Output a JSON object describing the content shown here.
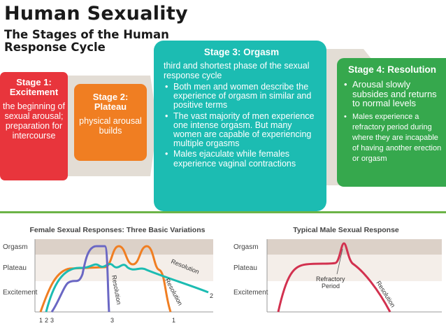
{
  "header": {
    "title": "Human Sexuality",
    "subtitle": "The Stages of the Human Response Cycle"
  },
  "stages": [
    {
      "title": "Stage 1: Excitement",
      "text": "the beginning of sexual arousal; preparation for intercourse",
      "color": "#e8353c"
    },
    {
      "title": "Stage 2: Plateau",
      "text": "physical arousal builds",
      "color": "#f07e22"
    },
    {
      "title": "Stage 3: Orgasm",
      "intro": "third and shortest phase of the sexual response cycle",
      "bullets": [
        "Both men and women describe the experience of orgasm in similar and positive terms",
        "The vast majority of men experience one intense orgasm. But many women are capable of experiencing multiple orgasms",
        "Males ejaculate while females experience vaginal contractions"
      ],
      "color": "#1cbcb2"
    },
    {
      "title": "Stage 4: Resolution",
      "bullets": [
        "Arousal slowly subsides and returns to normal levels",
        "Males experience a refractory period during where they are incapable of having another erection or orgasm"
      ],
      "color": "#36a84d"
    }
  ],
  "female_chart": {
    "title": "Female Sexual Responses: Three Basic Variations",
    "levels": [
      "Orgasm",
      "Plateau",
      "Excitement"
    ],
    "curve_labels": [
      "Resolution",
      "Resolution",
      "Resolution"
    ],
    "curve_numbers": [
      "1",
      "2",
      "3",
      "3",
      "1",
      "2"
    ]
  },
  "male_chart": {
    "title": "Typical Male Sexual Response",
    "levels": [
      "Orgasm",
      "Plateau",
      "Excitement"
    ],
    "refractory_label": "Refractory Period",
    "refractory_line1": "Refractory",
    "refractory_line2": "Period",
    "resolution_label": "Resolution"
  },
  "colors": {
    "curve1": "#f07e22",
    "curve2": "#1cbcb2",
    "curve3": "#6a67c4",
    "male_curve": "#d2314f",
    "band_dark": "#dcd1c8",
    "band_light": "#f4eee9",
    "divider": "#6cb447"
  }
}
